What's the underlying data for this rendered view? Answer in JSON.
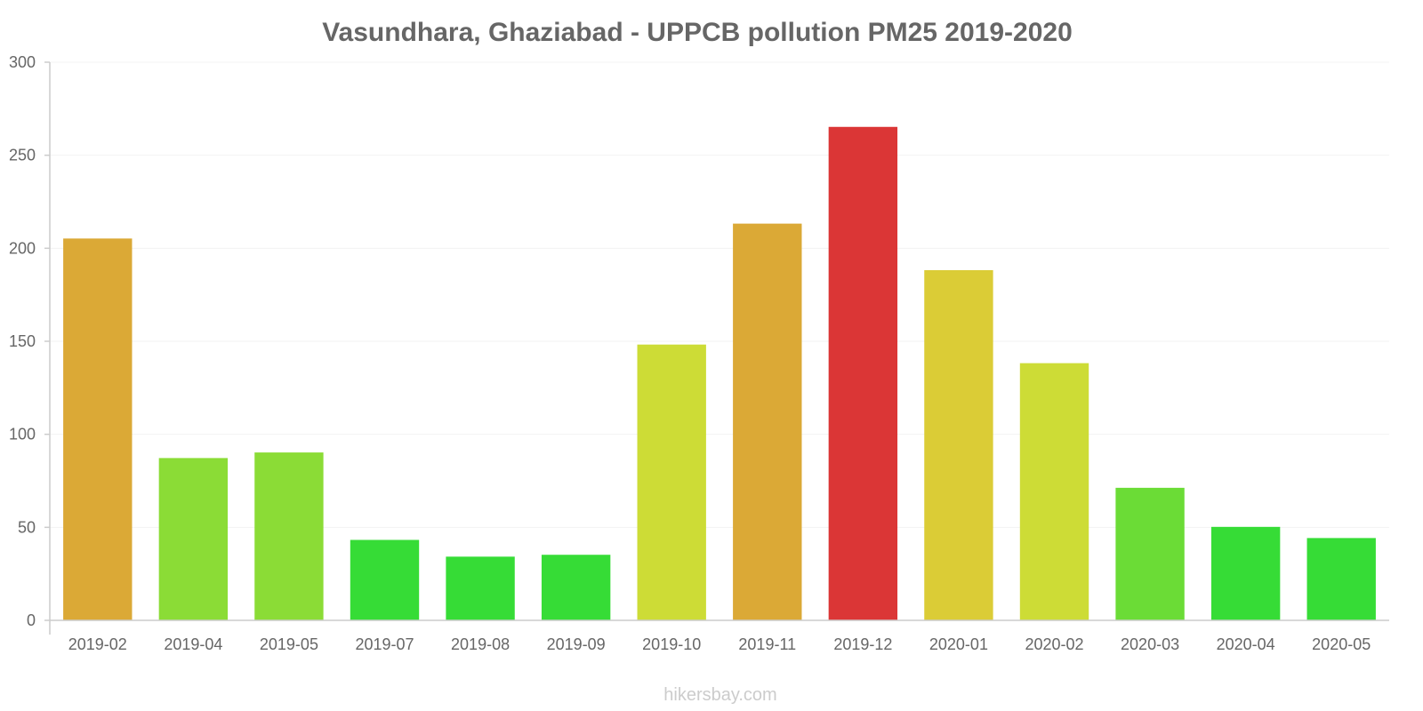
{
  "chart_data": {
    "type": "bar",
    "title": "Vasundhara, Ghaziabad - UPPCB pollution PM25 2019-2020",
    "xlabel": "",
    "ylabel": "",
    "ylim": [
      0,
      300
    ],
    "yticks": [
      0,
      50,
      100,
      150,
      200,
      250,
      300
    ],
    "grid": true,
    "legend": "none",
    "categories": [
      "2019-02",
      "2019-04",
      "2019-05",
      "2019-07",
      "2019-08",
      "2019-09",
      "2019-10",
      "2019-11",
      "2019-12",
      "2020-01",
      "2020-02",
      "2020-03",
      "2020-04",
      "2020-05"
    ],
    "values": [
      205,
      87,
      90,
      43,
      34,
      35,
      148,
      213,
      265,
      188,
      138,
      71,
      50,
      44
    ],
    "colors": [
      "#dba936",
      "#8bdc36",
      "#8bdc36",
      "#36dc36",
      "#36dc36",
      "#36dc36",
      "#cddc36",
      "#dba936",
      "#db3636",
      "#dbcc36",
      "#cddc36",
      "#6bdc36",
      "#36dc36",
      "#36dc36"
    ]
  },
  "watermark": "hikersbay.com"
}
